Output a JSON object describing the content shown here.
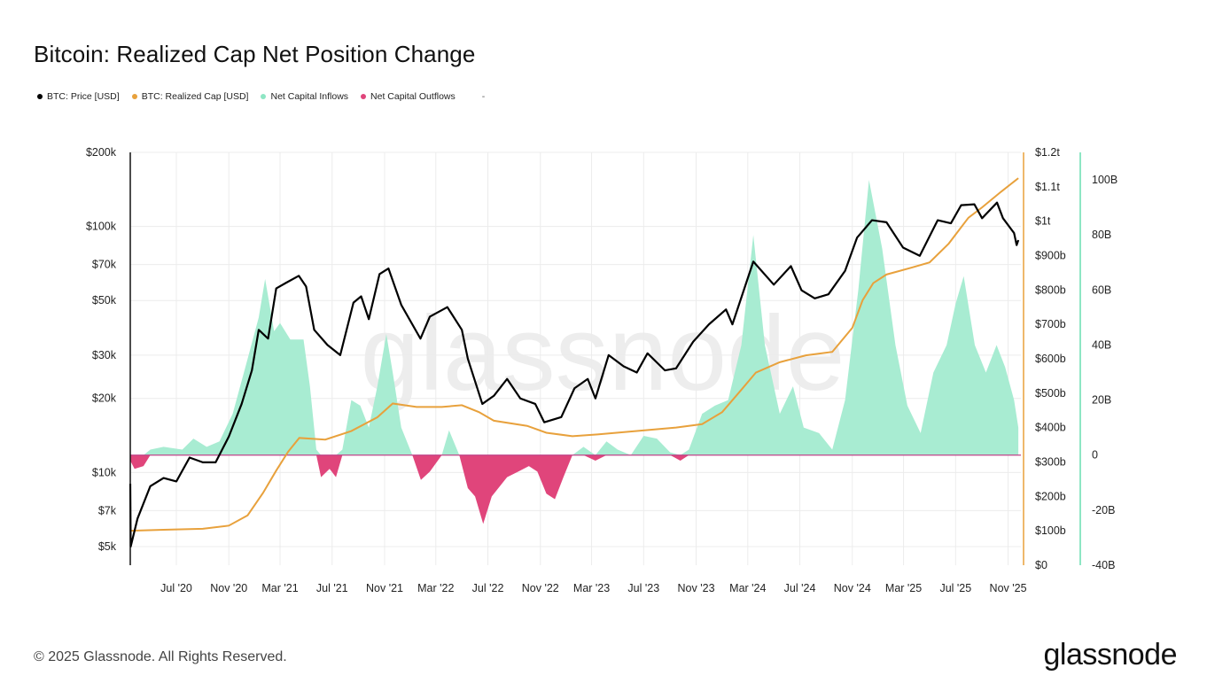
{
  "title": "Bitcoin: Realized Cap Net Position Change",
  "legend": [
    {
      "label": "BTC: Price [USD]",
      "color": "#000000"
    },
    {
      "label": "BTC: Realized Cap [USD]",
      "color": "#e8a13c"
    },
    {
      "label": "Net Capital Inflows",
      "color": "#8ee6c4"
    },
    {
      "label": "Net Capital Outflows",
      "color": "#e0457b"
    }
  ],
  "legend_extra": "-",
  "watermark": "glassnode",
  "footer": "© 2025 Glassnode. All Rights Reserved.",
  "brand": "glassnode",
  "colors": {
    "price": "#000000",
    "realized": "#e8a13c",
    "inflow": "#a8ecd2",
    "outflow": "#e0457b",
    "grid": "#ececec"
  },
  "chart_data": {
    "type": "line",
    "x_ticks": [
      "Jul '20",
      "Nov '20",
      "Mar '21",
      "Jul '21",
      "Nov '21",
      "Mar '22",
      "Jul '22",
      "Nov '22",
      "Mar '23",
      "Jul '23",
      "Nov '23",
      "Mar '24",
      "Jul '24",
      "Nov '24",
      "Mar '25",
      "Jul '25",
      "Nov '25"
    ],
    "x_range": [
      "2020-03-15",
      "2025-12-01"
    ],
    "y_left": {
      "scale": "log",
      "ticks": [
        "$5k",
        "$7k",
        "$10k",
        "$20k",
        "$30k",
        "$50k",
        "$70k",
        "$100k",
        "$200k"
      ],
      "tick_values": [
        5000,
        7000,
        10000,
        20000,
        30000,
        50000,
        70000,
        100000,
        200000
      ],
      "range": [
        4200,
        200000
      ]
    },
    "y_mid": {
      "scale": "linear",
      "ticks": [
        "$0",
        "$100b",
        "$200b",
        "$300b",
        "$400b",
        "$500b",
        "$600b",
        "$700b",
        "$800b",
        "$900b",
        "$1t",
        "$1.1t",
        "$1.2t"
      ],
      "tick_values": [
        0,
        100,
        200,
        300,
        400,
        500,
        600,
        700,
        800,
        900,
        1000,
        1100,
        1200
      ],
      "unit": "billions USD",
      "range": [
        0,
        1200
      ]
    },
    "y_right": {
      "scale": "linear",
      "ticks": [
        "-40B",
        "-20B",
        "0",
        "20B",
        "40B",
        "60B",
        "80B",
        "100B"
      ],
      "tick_values": [
        -40,
        -20,
        0,
        20,
        40,
        60,
        80,
        100
      ],
      "unit": "billions USD",
      "range": [
        -40,
        110
      ]
    },
    "series": [
      {
        "name": "BTC: Price [USD]",
        "axis": "left",
        "points": [
          [
            "2020-03-15",
            9000
          ],
          [
            "2020-03-16",
            5000
          ],
          [
            "2020-04-01",
            6500
          ],
          [
            "2020-05-01",
            8800
          ],
          [
            "2020-06-01",
            9500
          ],
          [
            "2020-07-01",
            9200
          ],
          [
            "2020-08-01",
            11500
          ],
          [
            "2020-09-01",
            11000
          ],
          [
            "2020-10-01",
            11000
          ],
          [
            "2020-11-01",
            14000
          ],
          [
            "2020-12-01",
            19000
          ],
          [
            "2020-12-25",
            26000
          ],
          [
            "2021-01-10",
            38000
          ],
          [
            "2021-02-01",
            35000
          ],
          [
            "2021-02-20",
            56000
          ],
          [
            "2021-03-15",
            59000
          ],
          [
            "2021-04-14",
            63000
          ],
          [
            "2021-05-01",
            57000
          ],
          [
            "2021-05-20",
            38000
          ],
          [
            "2021-06-20",
            33000
          ],
          [
            "2021-07-20",
            30000
          ],
          [
            "2021-08-20",
            49000
          ],
          [
            "2021-09-07",
            52000
          ],
          [
            "2021-09-25",
            42000
          ],
          [
            "2021-10-20",
            64000
          ],
          [
            "2021-11-10",
            67500
          ],
          [
            "2021-12-10",
            48000
          ],
          [
            "2022-01-24",
            35000
          ],
          [
            "2022-02-15",
            43000
          ],
          [
            "2022-03-28",
            47000
          ],
          [
            "2022-05-01",
            38000
          ],
          [
            "2022-05-15",
            29000
          ],
          [
            "2022-06-18",
            19000
          ],
          [
            "2022-07-15",
            20500
          ],
          [
            "2022-08-15",
            24000
          ],
          [
            "2022-09-15",
            20000
          ],
          [
            "2022-10-20",
            19000
          ],
          [
            "2022-11-10",
            16000
          ],
          [
            "2022-12-20",
            16800
          ],
          [
            "2023-01-20",
            22000
          ],
          [
            "2023-02-20",
            24000
          ],
          [
            "2023-03-10",
            20000
          ],
          [
            "2023-04-10",
            30000
          ],
          [
            "2023-05-15",
            27000
          ],
          [
            "2023-06-15",
            25500
          ],
          [
            "2023-07-10",
            30500
          ],
          [
            "2023-08-20",
            26000
          ],
          [
            "2023-09-15",
            26500
          ],
          [
            "2023-10-25",
            34000
          ],
          [
            "2023-12-01",
            40000
          ],
          [
            "2024-01-10",
            46000
          ],
          [
            "2024-01-25",
            40000
          ],
          [
            "2024-03-14",
            72000
          ],
          [
            "2024-05-01",
            58000
          ],
          [
            "2024-06-10",
            69000
          ],
          [
            "2024-07-05",
            55000
          ],
          [
            "2024-08-05",
            51000
          ],
          [
            "2024-09-06",
            53000
          ],
          [
            "2024-10-15",
            66000
          ],
          [
            "2024-11-12",
            90000
          ],
          [
            "2024-12-17",
            106000
          ],
          [
            "2025-01-20",
            104000
          ],
          [
            "2025-02-28",
            82000
          ],
          [
            "2025-04-08",
            76000
          ],
          [
            "2025-05-20",
            106000
          ],
          [
            "2025-06-20",
            103000
          ],
          [
            "2025-07-14",
            122000
          ],
          [
            "2025-08-14",
            123000
          ],
          [
            "2025-09-01",
            108000
          ],
          [
            "2025-10-06",
            125000
          ],
          [
            "2025-10-20",
            108000
          ],
          [
            "2025-11-15",
            94000
          ],
          [
            "2025-11-21",
            84000
          ],
          [
            "2025-11-25",
            88000
          ]
        ]
      },
      {
        "name": "BTC: Realized Cap [USD]",
        "axis": "mid",
        "unit": "billions USD",
        "points": [
          [
            "2020-03-15",
            100
          ],
          [
            "2020-06-01",
            103
          ],
          [
            "2020-09-01",
            106
          ],
          [
            "2020-11-01",
            115
          ],
          [
            "2020-12-15",
            145
          ],
          [
            "2021-01-20",
            210
          ],
          [
            "2021-02-20",
            275
          ],
          [
            "2021-03-20",
            330
          ],
          [
            "2021-04-15",
            370
          ],
          [
            "2021-06-15",
            365
          ],
          [
            "2021-08-15",
            390
          ],
          [
            "2021-10-15",
            430
          ],
          [
            "2021-11-20",
            470
          ],
          [
            "2022-01-15",
            460
          ],
          [
            "2022-03-15",
            460
          ],
          [
            "2022-05-01",
            465
          ],
          [
            "2022-06-10",
            445
          ],
          [
            "2022-07-15",
            420
          ],
          [
            "2022-10-01",
            405
          ],
          [
            "2022-11-15",
            385
          ],
          [
            "2023-01-15",
            375
          ],
          [
            "2023-03-15",
            380
          ],
          [
            "2023-06-15",
            390
          ],
          [
            "2023-09-15",
            400
          ],
          [
            "2023-11-15",
            410
          ],
          [
            "2024-01-01",
            445
          ],
          [
            "2024-02-15",
            510
          ],
          [
            "2024-03-20",
            560
          ],
          [
            "2024-05-15",
            590
          ],
          [
            "2024-07-15",
            610
          ],
          [
            "2024-09-15",
            620
          ],
          [
            "2024-11-01",
            690
          ],
          [
            "2024-11-25",
            770
          ],
          [
            "2024-12-20",
            820
          ],
          [
            "2025-01-20",
            845
          ],
          [
            "2025-03-20",
            865
          ],
          [
            "2025-05-01",
            880
          ],
          [
            "2025-06-15",
            935
          ],
          [
            "2025-07-31",
            1010
          ],
          [
            "2025-09-01",
            1040
          ],
          [
            "2025-10-15",
            1085
          ],
          [
            "2025-11-25",
            1125
          ]
        ]
      },
      {
        "name": "Net Capital Inflows / Outflows",
        "axis": "right",
        "unit": "billions USD",
        "points": [
          [
            "2020-03-15",
            -2
          ],
          [
            "2020-03-25",
            -5
          ],
          [
            "2020-04-15",
            -4
          ],
          [
            "2020-05-01",
            2
          ],
          [
            "2020-06-01",
            3
          ],
          [
            "2020-07-15",
            2
          ],
          [
            "2020-08-10",
            6
          ],
          [
            "2020-09-10",
            3
          ],
          [
            "2020-10-10",
            5
          ],
          [
            "2020-11-10",
            15
          ],
          [
            "2020-12-15",
            35
          ],
          [
            "2021-01-10",
            50
          ],
          [
            "2021-01-25",
            64
          ],
          [
            "2021-02-15",
            45
          ],
          [
            "2021-03-01",
            48
          ],
          [
            "2021-03-25",
            42
          ],
          [
            "2021-04-25",
            42
          ],
          [
            "2021-05-10",
            25
          ],
          [
            "2021-05-25",
            2
          ],
          [
            "2021-06-05",
            -8
          ],
          [
            "2021-06-25",
            -5
          ],
          [
            "2021-07-10",
            -8
          ],
          [
            "2021-07-25",
            2
          ],
          [
            "2021-08-15",
            20
          ],
          [
            "2021-09-05",
            18
          ],
          [
            "2021-09-25",
            10
          ],
          [
            "2021-10-15",
            25
          ],
          [
            "2021-11-05",
            44
          ],
          [
            "2021-11-20",
            30
          ],
          [
            "2021-12-10",
            10
          ],
          [
            "2022-01-05",
            0
          ],
          [
            "2022-01-25",
            -9
          ],
          [
            "2022-02-15",
            -6
          ],
          [
            "2022-03-15",
            0
          ],
          [
            "2022-04-01",
            9
          ],
          [
            "2022-04-25",
            0
          ],
          [
            "2022-05-15",
            -12
          ],
          [
            "2022-06-01",
            -15
          ],
          [
            "2022-06-20",
            -25
          ],
          [
            "2022-07-10",
            -15
          ],
          [
            "2022-08-15",
            -8
          ],
          [
            "2022-09-10",
            -6
          ],
          [
            "2022-10-05",
            -4
          ],
          [
            "2022-10-25",
            -6
          ],
          [
            "2022-11-15",
            -14
          ],
          [
            "2022-12-05",
            -16
          ],
          [
            "2022-12-25",
            -8
          ],
          [
            "2023-01-15",
            0
          ],
          [
            "2023-02-10",
            3
          ],
          [
            "2023-03-10",
            -2
          ],
          [
            "2023-04-05",
            5
          ],
          [
            "2023-05-01",
            2
          ],
          [
            "2023-06-01",
            0
          ],
          [
            "2023-07-01",
            7
          ],
          [
            "2023-08-01",
            6
          ],
          [
            "2023-09-01",
            1
          ],
          [
            "2023-09-25",
            -2
          ],
          [
            "2023-10-15",
            2
          ],
          [
            "2023-11-15",
            15
          ],
          [
            "2023-12-15",
            18
          ],
          [
            "2024-01-15",
            20
          ],
          [
            "2024-02-15",
            40
          ],
          [
            "2024-03-14",
            80
          ],
          [
            "2024-04-10",
            40
          ],
          [
            "2024-05-15",
            15
          ],
          [
            "2024-06-15",
            25
          ],
          [
            "2024-07-10",
            10
          ],
          [
            "2024-08-15",
            8
          ],
          [
            "2024-09-15",
            2
          ],
          [
            "2024-10-15",
            20
          ],
          [
            "2024-11-15",
            60
          ],
          [
            "2024-12-10",
            100
          ],
          [
            "2025-01-10",
            75
          ],
          [
            "2025-02-10",
            40
          ],
          [
            "2025-03-10",
            18
          ],
          [
            "2025-04-10",
            8
          ],
          [
            "2025-05-10",
            30
          ],
          [
            "2025-06-10",
            40
          ],
          [
            "2025-07-01",
            55
          ],
          [
            "2025-07-20",
            65
          ],
          [
            "2025-08-15",
            40
          ],
          [
            "2025-09-10",
            30
          ],
          [
            "2025-10-05",
            40
          ],
          [
            "2025-10-25",
            32
          ],
          [
            "2025-11-15",
            20
          ],
          [
            "2025-11-25",
            10
          ]
        ]
      }
    ]
  }
}
